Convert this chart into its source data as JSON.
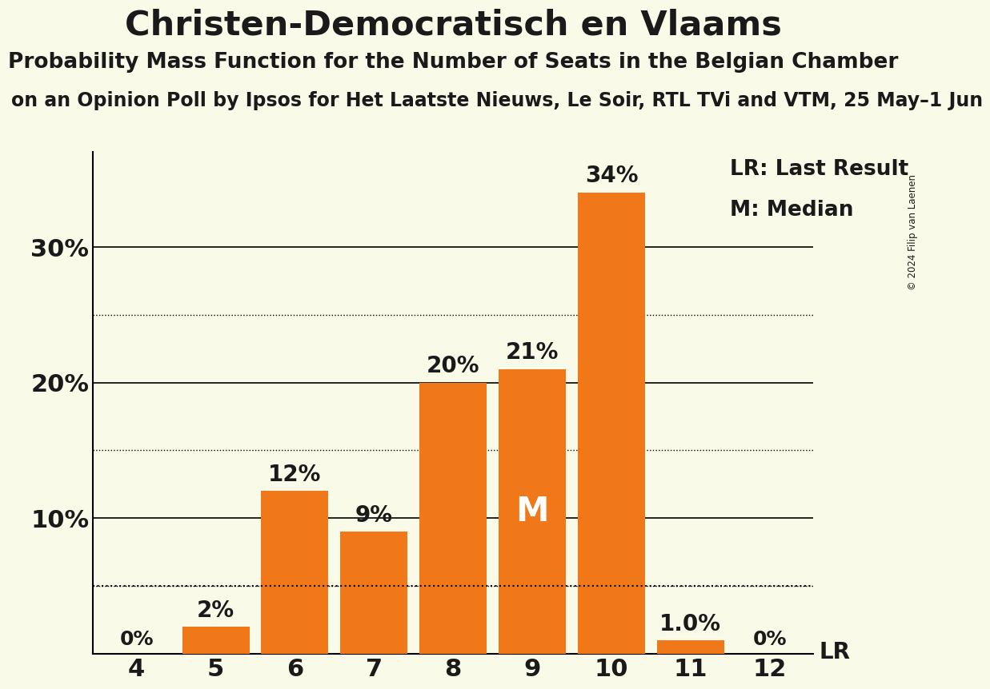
{
  "title": "Christen-Democratisch en Vlaams",
  "subtitle": "Probability Mass Function for the Number of Seats in the Belgian Chamber",
  "source_line": "on an Opinion Poll by Ipsos for Het Laatste Nieuws, Le Soir, RTL TVi and VTM, 25 May–1 Jun",
  "copyright": "© 2024 Filip van Laenen",
  "seats": [
    4,
    5,
    6,
    7,
    8,
    9,
    10,
    11,
    12
  ],
  "probabilities": [
    0.0,
    2.0,
    12.0,
    9.0,
    20.0,
    21.0,
    34.0,
    1.0,
    0.0
  ],
  "bar_color": "#f07818",
  "background_color": "#fafae8",
  "text_color": "#1a1a1a",
  "median_seat": 9,
  "last_result_pct": 5.0,
  "yticks": [
    0,
    10,
    20,
    30
  ],
  "ytick_labels": [
    "",
    "10%",
    "20%",
    "30%"
  ],
  "dotted_gridlines": [
    5,
    15,
    25
  ],
  "solid_gridlines": [
    10,
    20,
    30
  ],
  "bar_labels": [
    "0%",
    "2%",
    "12%",
    "9%",
    "20%",
    "21%",
    "34%",
    "1.0%",
    "0%"
  ],
  "ymax": 37,
  "legend_lr_text": "LR: Last Result",
  "legend_m_text": "M: Median"
}
